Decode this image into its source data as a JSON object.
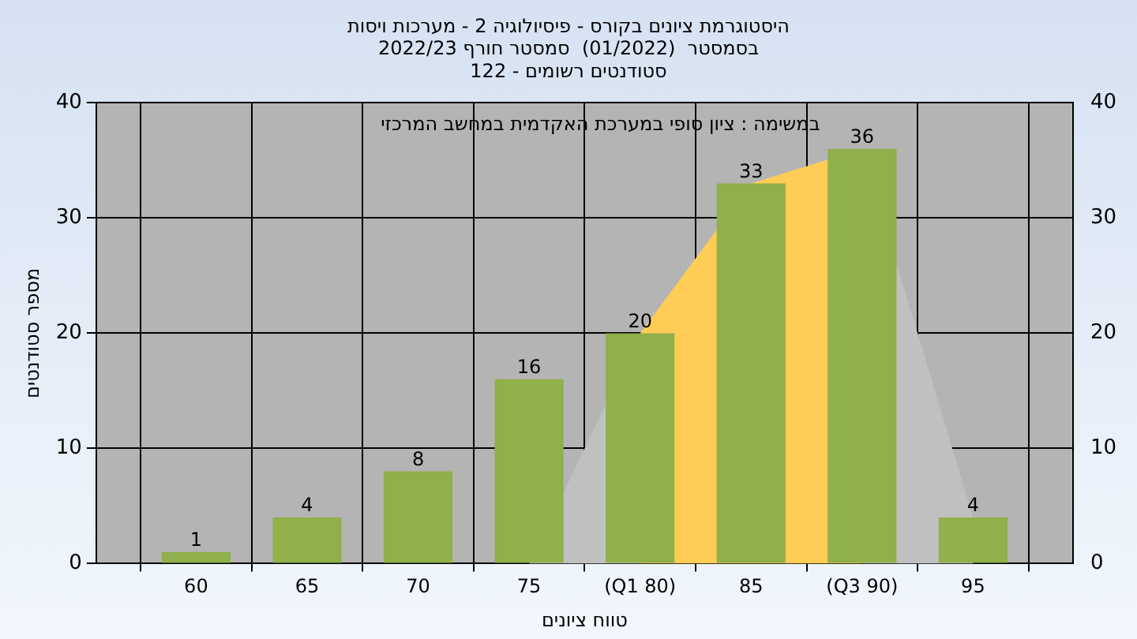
{
  "chart_data": {
    "type": "bar",
    "title": [
      "היסטוגרמת ציונים בקורס - פיסיולוגיה 2 - מערכות ויסות",
      "בסמסטר  (01/2022)  סמסטר חורף 2022/23",
      "סטודנטים רשומים - 122"
    ],
    "xlabel": "טווח ציונים",
    "ylabel": "מספר סטודנטים",
    "annotations": [
      "במשימה : ציון סופי במערכת האקדמית במחשב המרכזי"
    ],
    "categories": [
      "60",
      "65",
      "70",
      "75",
      "(Q1 80)",
      "85",
      "(Q3 90)",
      "95"
    ],
    "series": [
      {
        "type": "area",
        "color": "#c0c0c0",
        "values": [
          null,
          null,
          null,
          0,
          20,
          null,
          36,
          4
        ]
      },
      {
        "type": "area",
        "color": "#ffcc55",
        "values": [
          null,
          null,
          null,
          null,
          20,
          33,
          36,
          null
        ]
      },
      {
        "color": "#8fb04a",
        "values": [
          1,
          4,
          8,
          16,
          20,
          33,
          36,
          4
        ],
        "value_labels": [
          "1",
          "4",
          "8",
          "16",
          "20",
          "33",
          "36",
          "4"
        ]
      }
    ],
    "ylim": [
      0,
      40
    ],
    "yticks": [
      0,
      10,
      20,
      30,
      40
    ],
    "y2lim": [
      0,
      40
    ],
    "y2ticks": [
      0,
      10,
      20,
      30,
      40
    ],
    "grid": true,
    "legend": false
  }
}
